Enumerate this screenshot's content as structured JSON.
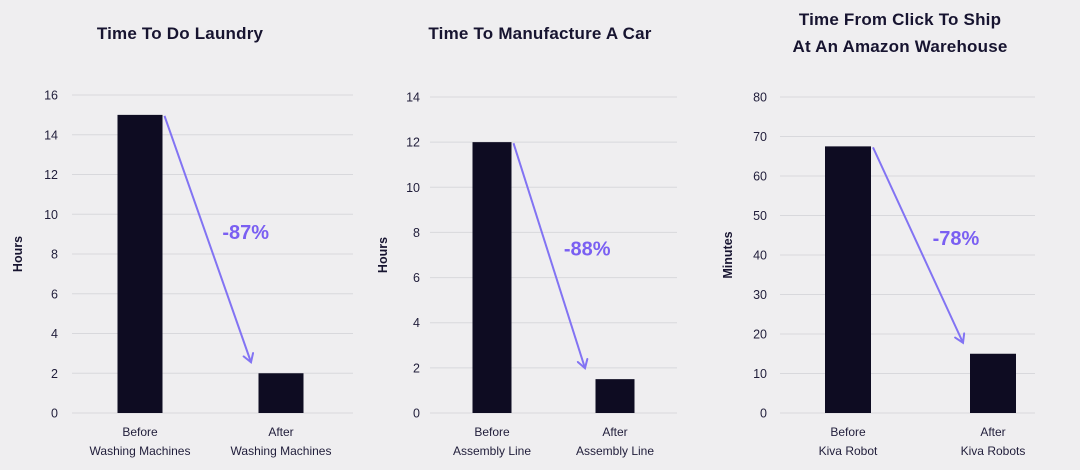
{
  "page": {
    "background": "#efeef0"
  },
  "colors": {
    "bar": "#0e0c22",
    "grid": "#d8d8dc",
    "text": "#201d3a",
    "title": "#171430",
    "arrow": "#8273f3",
    "accent_text": "#7a5ff2"
  },
  "chart_data": [
    {
      "type": "bar",
      "title": "Time To Do Laundry",
      "ylabel": "Hours",
      "xlabel": "",
      "ylim": [
        0,
        16
      ],
      "ytick_step": 2,
      "grid": true,
      "categories": [
        "Before\nWashing Machines",
        "After\nWashing Machines"
      ],
      "values": [
        15,
        2
      ],
      "change_label": "-87%"
    },
    {
      "type": "bar",
      "title": "Time To Manufacture A Car",
      "ylabel": "Hours",
      "xlabel": "",
      "ylim": [
        0,
        14
      ],
      "ytick_step": 2,
      "grid": true,
      "categories": [
        "Before\nAssembly Line",
        "After\nAssembly Line"
      ],
      "values": [
        12,
        1.5
      ],
      "change_label": "-88%"
    },
    {
      "type": "bar",
      "title": "Time From Click To Ship\nAt An Amazon Warehouse",
      "ylabel": "Minutes",
      "xlabel": "",
      "ylim": [
        0,
        80
      ],
      "ytick_step": 10,
      "grid": true,
      "categories": [
        "Before\nKiva Robot",
        "After\nKiva Robots"
      ],
      "values": [
        67.5,
        15
      ],
      "change_label": "-78%"
    }
  ]
}
